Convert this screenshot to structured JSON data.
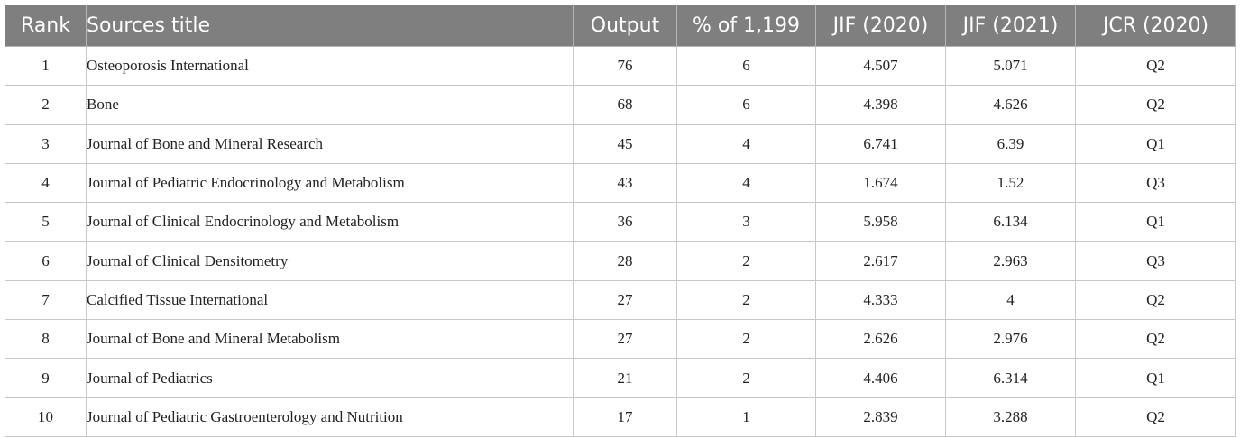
{
  "table": {
    "headers": [
      "Rank",
      "Sources title",
      "Output",
      "% of 1,199",
      "JIF (2020)",
      "JIF (2021)",
      "JCR (2020)"
    ],
    "rows": [
      [
        "1",
        "Osteoporosis International",
        "76",
        "6",
        "4.507",
        "5.071",
        "Q2"
      ],
      [
        "2",
        "Bone",
        "68",
        "6",
        "4.398",
        "4.626",
        "Q2"
      ],
      [
        "3",
        "Journal of Bone and Mineral Research",
        "45",
        "4",
        "6.741",
        "6.39",
        "Q1"
      ],
      [
        "4",
        "Journal of Pediatric Endocrinology and Metabolism",
        "43",
        "4",
        "1.674",
        "1.52",
        "Q3"
      ],
      [
        "5",
        "Journal of Clinical Endocrinology and Metabolism",
        "36",
        "3",
        "5.958",
        "6.134",
        "Q1"
      ],
      [
        "6",
        "Journal of Clinical Densitometry",
        "28",
        "2",
        "2.617",
        "2.963",
        "Q3"
      ],
      [
        "7",
        "Calcified Tissue International",
        "27",
        "2",
        "4.333",
        "4",
        "Q2"
      ],
      [
        "8",
        "Journal of Bone and Mineral Metabolism",
        "27",
        "2",
        "2.626",
        "2.976",
        "Q2"
      ],
      [
        "9",
        "Journal of Pediatrics",
        "21",
        "2",
        "4.406",
        "6.314",
        "Q1"
      ],
      [
        "10",
        "Journal of Pediatric Gastroenterology and Nutrition",
        "17",
        "1",
        "2.839",
        "3.288",
        "Q2"
      ]
    ]
  },
  "colors": {
    "header_background": "#7f7f7f",
    "header_text": "#ffffff",
    "grid_line": "#c8c8c8"
  }
}
